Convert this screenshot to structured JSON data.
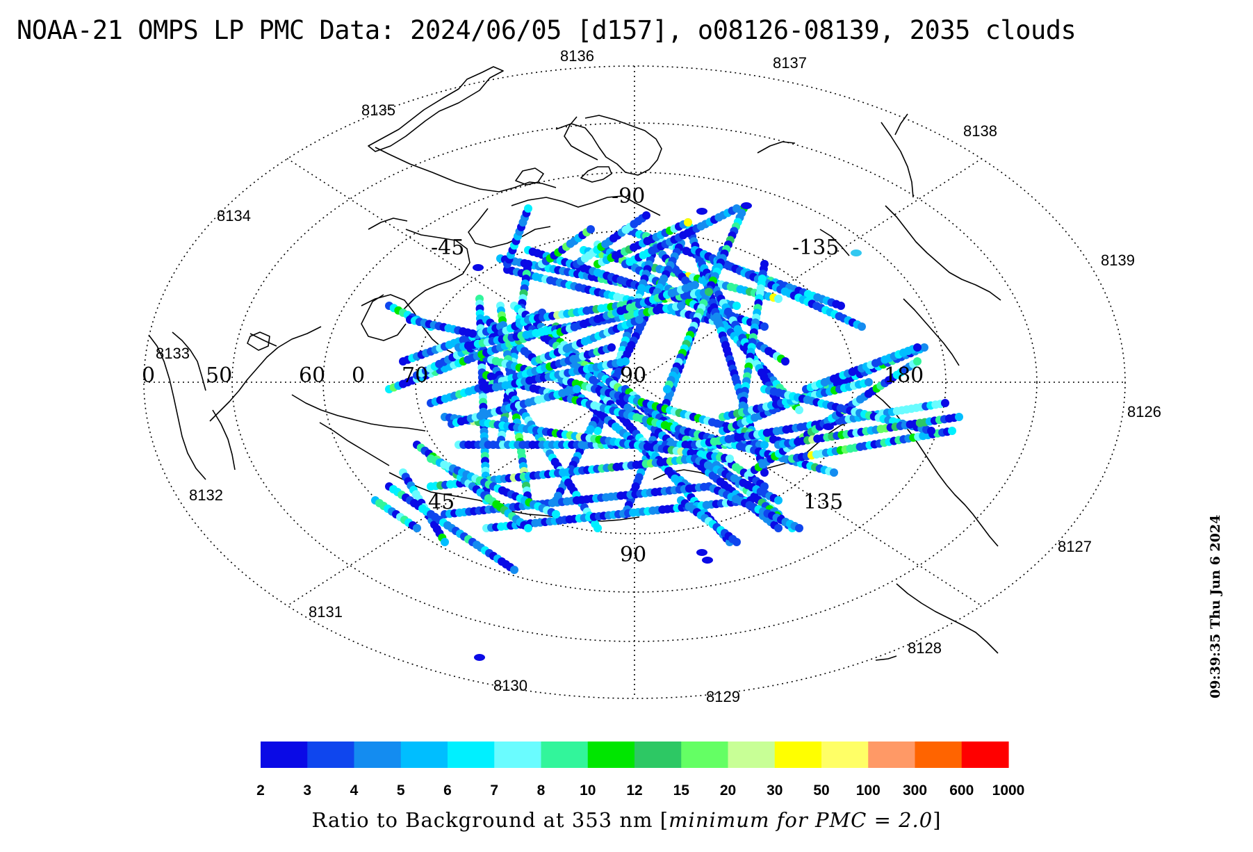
{
  "title": "NOAA-21 OMPS LP PMC Data: 2024/06/05 [d157], o08126-08139, 2035 clouds",
  "timestamp": "09:39:35 Thu Jun  6 2024",
  "colorbar": {
    "title_prefix": "Ratio to Background at 353 nm [",
    "title_italic": "minimum for PMC = 2.0",
    "title_suffix": "]",
    "tick_labels": [
      "2",
      "3",
      "4",
      "5",
      "6",
      "7",
      "8",
      "10",
      "12",
      "15",
      "20",
      "30",
      "50",
      "100",
      "300",
      "600",
      "1000"
    ],
    "colors": [
      "#0a0ae6",
      "#0f46ee",
      "#148cf0",
      "#00beff",
      "#00f0ff",
      "#6afcff",
      "#32f59b",
      "#00e600",
      "#2dc864",
      "#64ff64",
      "#c8ff96",
      "#ffff00",
      "#ffff66",
      "#ff9966",
      "#ff6400",
      "#ff0000"
    ]
  },
  "orbit_labels": [
    "8136",
    "8137",
    "8135",
    "8138",
    "8134",
    "8139",
    "8133",
    "8126",
    "8132",
    "8127",
    "8131",
    "8128",
    "8130",
    "8129"
  ],
  "longitude_labels": [
    "-90",
    "-45",
    "-135",
    "0",
    "180",
    "45",
    "135",
    "90"
  ],
  "latitude_labels": [
    "50",
    "60",
    "70",
    "90"
  ],
  "map_colors": {
    "coastline": "#000000",
    "grid": "#000000"
  }
}
